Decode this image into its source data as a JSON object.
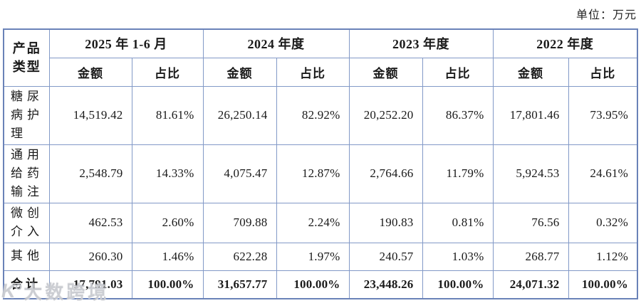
{
  "unit_label": "单位：万元",
  "table": {
    "corner_header": "产品\n类型",
    "period_headers": [
      "2025 年 1-6 月",
      "2024 年度",
      "2023 年度",
      "2022 年度"
    ],
    "sub_headers": {
      "amount": "金额",
      "share": "占比"
    },
    "rows": [
      {
        "label": "糖尿\n病护\n理",
        "cells": [
          "14,519.42",
          "81.61%",
          "26,250.14",
          "82.92%",
          "20,252.20",
          "86.37%",
          "17,801.46",
          "73.95%"
        ]
      },
      {
        "label": "通用\n给药\n输注",
        "cells": [
          "2,548.79",
          "14.33%",
          "4,075.47",
          "12.87%",
          "2,764.66",
          "11.79%",
          "5,924.53",
          "24.61%"
        ]
      },
      {
        "label": "微创\n介入",
        "cells": [
          "462.53",
          "2.60%",
          "709.88",
          "2.24%",
          "190.83",
          "0.81%",
          "76.56",
          "0.32%"
        ]
      },
      {
        "label": "其他",
        "cells": [
          "260.30",
          "1.46%",
          "622.28",
          "1.97%",
          "240.57",
          "1.03%",
          "268.77",
          "1.12%"
        ]
      },
      {
        "label": "合计",
        "cells": [
          "17,791.03",
          "100.00%",
          "31,657.77",
          "100.00%",
          "23,448.26",
          "100.00%",
          "24,071.32",
          "100.00%"
        ]
      }
    ]
  },
  "watermark": {
    "logo": "K°",
    "text": "大数跨境"
  },
  "colors": {
    "border_inner": "#8299c7",
    "border_outer": "#6a82b8",
    "text": "#1a1a1a",
    "background": "#ffffff"
  }
}
